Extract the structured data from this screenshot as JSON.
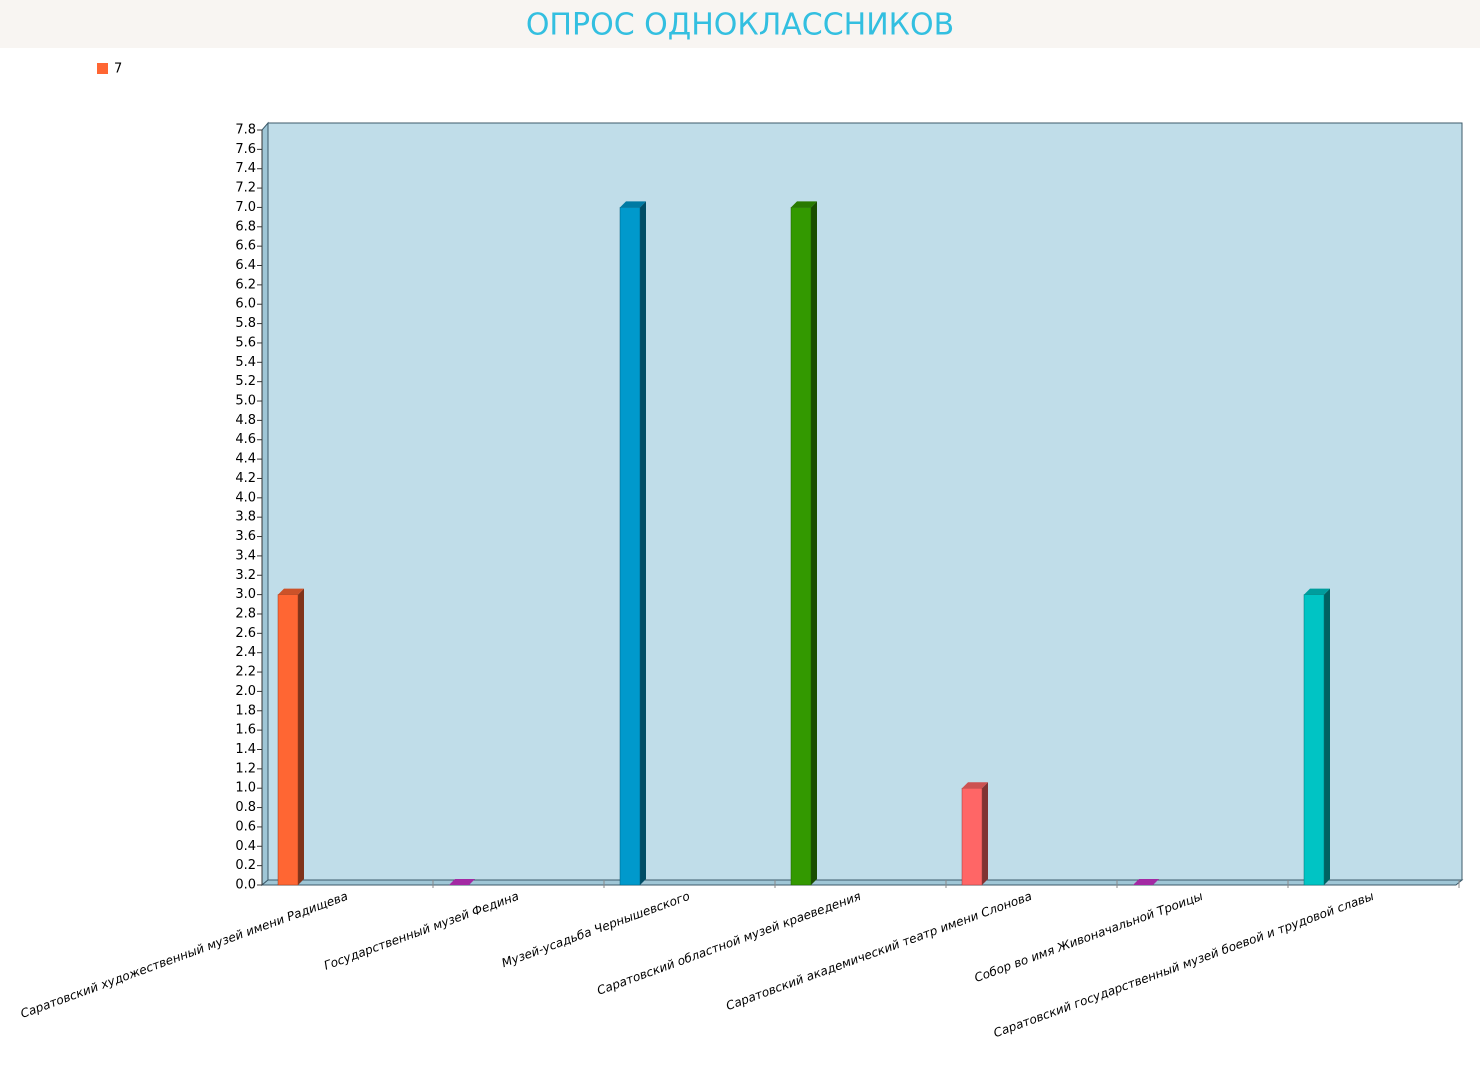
{
  "chart_data": {
    "type": "bar",
    "title": "ОПРОС ОДНОКЛАССНИКОВ",
    "categories": [
      "Саратовский художественный музей имени Радищева",
      "Государственный музей Федина",
      "Музей-усадьба Чернышевского",
      "Саратовский областной музей краеведения",
      "Саратовский академический театр имени Слонова",
      "Собор во имя Живоначальной Троицы",
      "Саратовский государственный музей боевой и трудовой славы"
    ],
    "series": [
      {
        "name": "7",
        "color": "#ff6633",
        "values": [
          3,
          0,
          7,
          7,
          1,
          0,
          3
        ],
        "colors": [
          "#ff6633",
          "#cc33cc",
          "#0099cc",
          "#339900",
          "#ff6666",
          "#cc33cc",
          "#00c4c4"
        ]
      }
    ],
    "ylim": [
      0,
      7.8
    ],
    "yticks": [
      {
        "value": 0,
        "label": "0.0"
      },
      0.2,
      0.4,
      0.6,
      0.8,
      {
        "value": 1,
        "label": "1.0"
      },
      1.2,
      1.4,
      1.6,
      1.8,
      {
        "value": 2,
        "label": "2.0"
      },
      2.2,
      2.4,
      2.6,
      2.8,
      {
        "value": 3,
        "label": "3.0"
      },
      3.2,
      3.4,
      3.6,
      3.8,
      {
        "value": 4,
        "label": "4.0"
      },
      4.2,
      4.4,
      4.6,
      4.8,
      {
        "value": 5,
        "label": "5.0"
      },
      5.2,
      5.4,
      5.6,
      5.8,
      {
        "value": 6,
        "label": "6.0"
      },
      6.2,
      6.4,
      6.6,
      6.8,
      {
        "value": 7,
        "label": "7.0"
      },
      7.2,
      7.4,
      7.6,
      7.8
    ],
    "grid": false,
    "legend": "top-left"
  }
}
